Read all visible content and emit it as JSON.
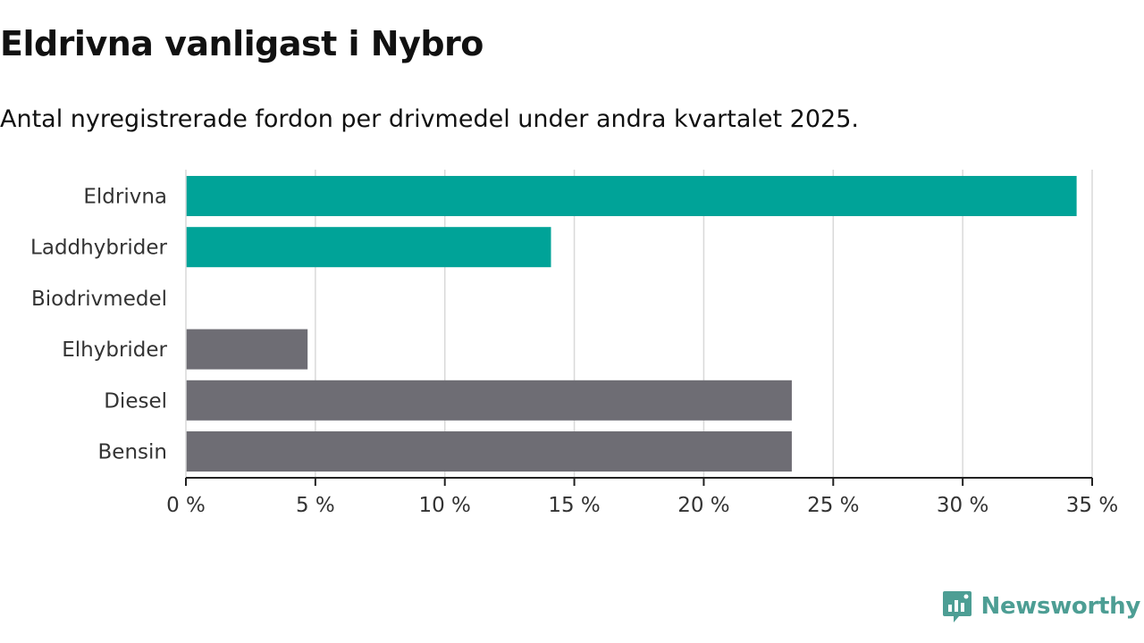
{
  "chart_data": {
    "type": "bar",
    "orientation": "horizontal",
    "title": "Eldrivna vanligast i Nybro",
    "subtitle": "Antal nyregistrerade fordon per drivmedel under andra kvartalet 2025.",
    "categories": [
      "Eldrivna",
      "Laddhybrider",
      "Biodrivmedel",
      "Elhybrider",
      "Diesel",
      "Bensin"
    ],
    "values": [
      34.4,
      14.1,
      0,
      4.7,
      23.4,
      23.4
    ],
    "bar_colors": [
      "#00a398",
      "#00a398",
      "#6e6d74",
      "#6e6d74",
      "#6e6d74",
      "#6e6d74"
    ],
    "xlim": [
      0,
      35
    ],
    "xticks": [
      0,
      5,
      10,
      15,
      20,
      25,
      30,
      35
    ],
    "xtick_labels": [
      "0 %",
      "5 %",
      "10 %",
      "15 %",
      "20 %",
      "25 %",
      "30 %",
      "35 %"
    ],
    "grid": true,
    "xlabel": "",
    "ylabel": ""
  },
  "brand": {
    "name": "Newsworthy",
    "icon": "newsworthy-logo-icon",
    "color": "#4d9e94"
  }
}
